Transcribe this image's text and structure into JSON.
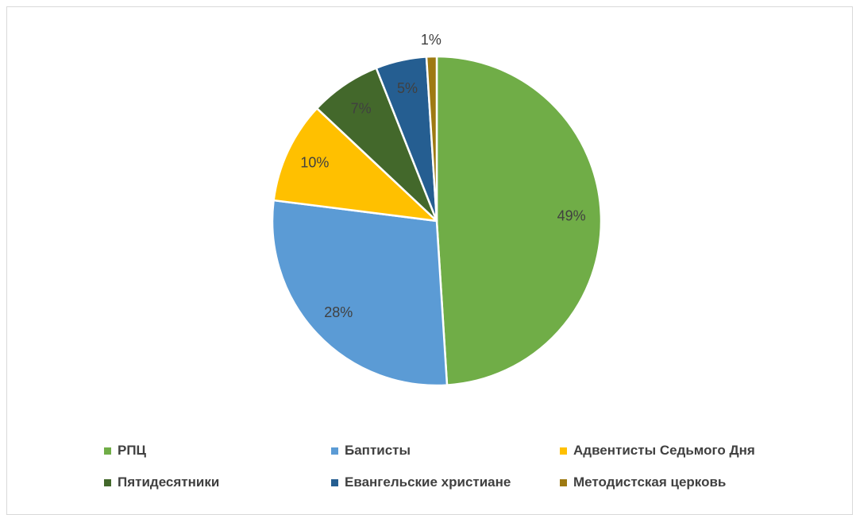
{
  "chart_data": {
    "type": "pie",
    "title": "",
    "categories": [
      "РПЦ",
      "Баптисты",
      "Адвентисты Седьмого Дня",
      "Пятидесятники",
      "Евангельские христиане",
      "Методистская церковь"
    ],
    "values": [
      49,
      28,
      10,
      7,
      5,
      1
    ],
    "labels": [
      "49%",
      "28%",
      "10%",
      "7%",
      "5%",
      "1%"
    ],
    "colors": [
      "#70ad47",
      "#5b9bd5",
      "#ffc000",
      "#43682b",
      "#255e91",
      "#9e7a12"
    ],
    "legend_position": "bottom"
  }
}
